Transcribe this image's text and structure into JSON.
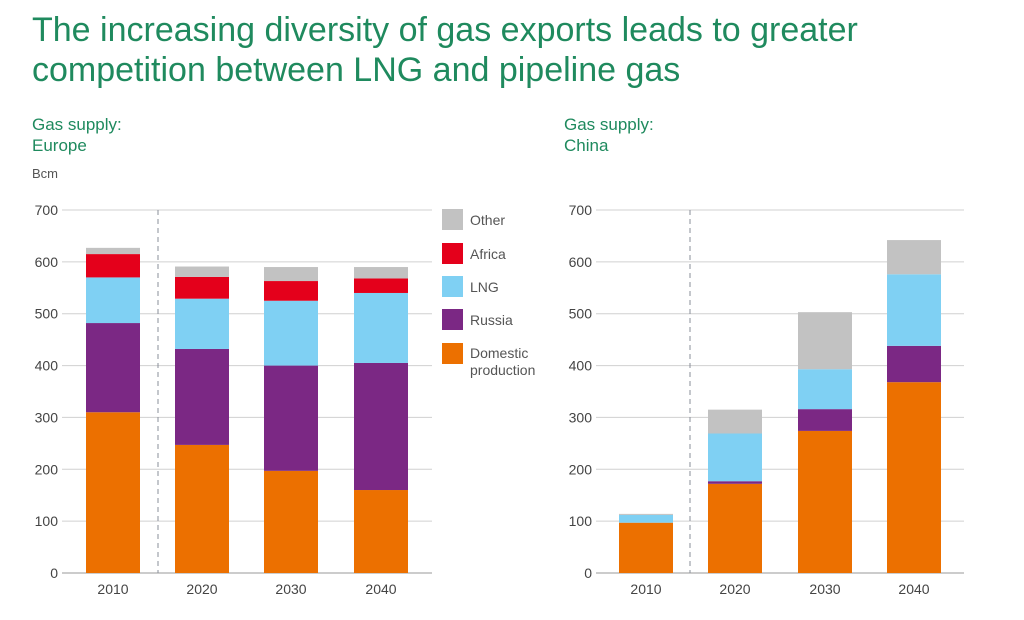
{
  "title_line1": "The increasing diversity of gas exports leads to greater",
  "title_line2": "competition between LNG and pipeline gas",
  "unit_label": "Bcm",
  "colors": {
    "Domestic production": "#ec7000",
    "Russia": "#7b2884",
    "LNG": "#7fd0f3",
    "Africa": "#e4001b",
    "Other": "#c2c2c2"
  },
  "chart_data": [
    {
      "type": "bar",
      "stacked": true,
      "title_line1": "Gas supply:",
      "title_line2": "Europe",
      "ylabel": "Bcm",
      "ylim": [
        0,
        700
      ],
      "yticks": [
        0,
        100,
        200,
        300,
        400,
        500,
        600,
        700
      ],
      "categories": [
        "2010",
        "2020",
        "2030",
        "2040"
      ],
      "grid": true,
      "legend": "right",
      "series": [
        {
          "name": "Domestic production",
          "values": [
            310,
            247,
            197,
            160
          ]
        },
        {
          "name": "Russia",
          "values": [
            172,
            185,
            203,
            245
          ]
        },
        {
          "name": "LNG",
          "values": [
            88,
            97,
            125,
            135
          ]
        },
        {
          "name": "Africa",
          "values": [
            45,
            42,
            38,
            28
          ]
        },
        {
          "name": "Other",
          "values": [
            12,
            20,
            27,
            22
          ]
        }
      ]
    },
    {
      "type": "bar",
      "stacked": true,
      "title_line1": "Gas supply:",
      "title_line2": "China",
      "ylabel": "",
      "ylim": [
        0,
        700
      ],
      "yticks": [
        0,
        100,
        200,
        300,
        400,
        500,
        600,
        700
      ],
      "categories": [
        "2010",
        "2020",
        "2030",
        "2040"
      ],
      "grid": true,
      "series": [
        {
          "name": "Domestic production",
          "values": [
            97,
            172,
            274,
            368
          ]
        },
        {
          "name": "Russia",
          "values": [
            0,
            5,
            42,
            70
          ]
        },
        {
          "name": "LNG",
          "values": [
            15,
            92,
            77,
            138
          ]
        },
        {
          "name": "Africa",
          "values": [
            0,
            0,
            0,
            0
          ]
        },
        {
          "name": "Other",
          "values": [
            2,
            46,
            110,
            66
          ]
        }
      ]
    }
  ],
  "legend": {
    "items": [
      {
        "label": "Other",
        "key": "Other"
      },
      {
        "label": "Africa",
        "key": "Africa"
      },
      {
        "label": "LNG",
        "key": "LNG"
      },
      {
        "label": "Russia",
        "key": "Russia"
      },
      {
        "label_line1": "Domestic",
        "label_line2": "production",
        "key": "Domestic production"
      }
    ]
  }
}
